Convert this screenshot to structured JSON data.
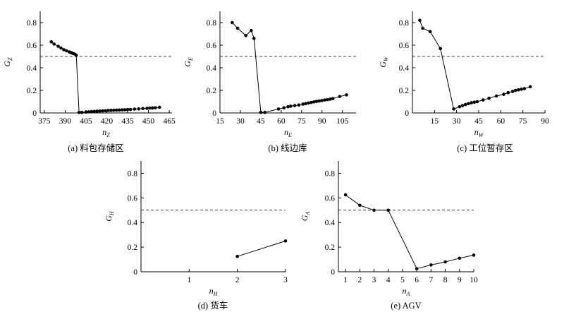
{
  "chart_data": [
    {
      "type": "line",
      "caption": "(a) 料包存储区",
      "xlabel": {
        "main": "n",
        "sub": "Z"
      },
      "ylabel": {
        "main": "G",
        "sub": "Z"
      },
      "xlim": [
        372,
        467
      ],
      "ylim": [
        0,
        0.9
      ],
      "xticks": [
        375,
        390,
        405,
        420,
        435,
        450,
        465
      ],
      "yticks": [
        0,
        0.2,
        0.4,
        0.6,
        0.8
      ],
      "ytick_labels": [
        "0",
        "0.2",
        "0.4",
        "0.6",
        "0.8"
      ],
      "threshold": 0.5,
      "x": [
        380,
        382,
        385,
        387,
        389,
        391,
        393,
        394,
        395,
        396,
        397,
        398,
        400,
        402,
        405,
        407,
        409,
        411,
        413,
        415,
        417,
        419,
        421,
        423,
        425,
        427,
        429,
        431,
        433,
        435,
        437,
        440,
        443,
        446,
        449,
        451,
        453,
        455,
        458
      ],
      "y": [
        0.63,
        0.61,
        0.59,
        0.575,
        0.56,
        0.55,
        0.54,
        0.535,
        0.53,
        0.525,
        0.52,
        0.51,
        0.005,
        0.005,
        0.008,
        0.01,
        0.012,
        0.014,
        0.015,
        0.017,
        0.018,
        0.02,
        0.022,
        0.023,
        0.024,
        0.025,
        0.026,
        0.027,
        0.028,
        0.03,
        0.031,
        0.034,
        0.036,
        0.039,
        0.041,
        0.043,
        0.044,
        0.046,
        0.05
      ]
    },
    {
      "type": "line",
      "caption": "(b) 线边库",
      "xlabel": {
        "main": "n",
        "sub": "E"
      },
      "ylabel": {
        "main": "G",
        "sub": "E"
      },
      "xlim": [
        15,
        115
      ],
      "ylim": [
        0,
        0.9
      ],
      "xticks": [
        15,
        30,
        45,
        60,
        75,
        90,
        105
      ],
      "yticks": [
        0,
        0.2,
        0.4,
        0.6,
        0.8
      ],
      "ytick_labels": [
        "0",
        "0.2",
        "0.4",
        "0.6",
        "0.8"
      ],
      "threshold": 0.5,
      "x": [
        24,
        28,
        34,
        38,
        40,
        45,
        48,
        58,
        62,
        65,
        67,
        70,
        73,
        76,
        78,
        80,
        82,
        84,
        86,
        88,
        90,
        92,
        94,
        96,
        98,
        103,
        108
      ],
      "y": [
        0.8,
        0.75,
        0.685,
        0.73,
        0.66,
        0.005,
        0.005,
        0.035,
        0.045,
        0.055,
        0.06,
        0.065,
        0.07,
        0.078,
        0.083,
        0.088,
        0.093,
        0.098,
        0.102,
        0.106,
        0.11,
        0.115,
        0.118,
        0.122,
        0.127,
        0.145,
        0.16
      ]
    },
    {
      "type": "line",
      "caption": "(c) 工位暂存区",
      "xlabel": {
        "main": "n",
        "sub": "W"
      },
      "ylabel": {
        "main": "G",
        "sub": "W"
      },
      "xlim": [
        0,
        90
      ],
      "ylim": [
        0,
        0.9
      ],
      "xticks": [
        15,
        30,
        45,
        60,
        75,
        90
      ],
      "yticks": [
        0,
        0.2,
        0.4,
        0.6,
        0.8
      ],
      "ytick_labels": [
        "0",
        "0.2",
        "0.4",
        "0.6",
        "0.8"
      ],
      "threshold": 0.5,
      "x": [
        5,
        7,
        12,
        19,
        28,
        32,
        34,
        36,
        38,
        40,
        42,
        44,
        48,
        52,
        57,
        62,
        65,
        68,
        70,
        72,
        74,
        76,
        80
      ],
      "y": [
        0.82,
        0.75,
        0.72,
        0.57,
        0.035,
        0.055,
        0.065,
        0.075,
        0.082,
        0.09,
        0.095,
        0.1,
        0.115,
        0.13,
        0.15,
        0.165,
        0.18,
        0.19,
        0.2,
        0.205,
        0.21,
        0.215,
        0.232
      ]
    },
    {
      "type": "line",
      "caption": "(d) 货车",
      "xlabel": {
        "main": "n",
        "sub": "H"
      },
      "ylabel": {
        "main": "G",
        "sub": "H"
      },
      "xlim": [
        0,
        3
      ],
      "ylim": [
        0,
        0.9
      ],
      "xticks": [
        1,
        2,
        3
      ],
      "yticks": [
        0,
        0.2,
        0.4,
        0.6,
        0.8
      ],
      "ytick_labels": [
        "0",
        "0.2",
        "0.4",
        "0.6",
        "0.8"
      ],
      "threshold": 0.5,
      "x": [
        2,
        3
      ],
      "y": [
        0.125,
        0.25
      ]
    },
    {
      "type": "line",
      "caption": "(e) AGV",
      "xlabel": {
        "main": "n",
        "sub": "A"
      },
      "ylabel": {
        "main": "G",
        "sub": "A"
      },
      "xlim": [
        0.5,
        10
      ],
      "ylim": [
        0,
        0.9
      ],
      "xticks": [
        1,
        2,
        3,
        4,
        5,
        6,
        7,
        8,
        9,
        10
      ],
      "yticks": [
        0,
        0.2,
        0.4,
        0.6,
        0.8
      ],
      "ytick_labels": [
        "0",
        "0.2",
        "0.4",
        "0.6",
        "0.8"
      ],
      "threshold": 0.5,
      "x": [
        1,
        2,
        3,
        4,
        6,
        7,
        8,
        9,
        10
      ],
      "y": [
        0.625,
        0.54,
        0.5,
        0.5,
        0.025,
        0.055,
        0.08,
        0.11,
        0.135
      ]
    }
  ]
}
